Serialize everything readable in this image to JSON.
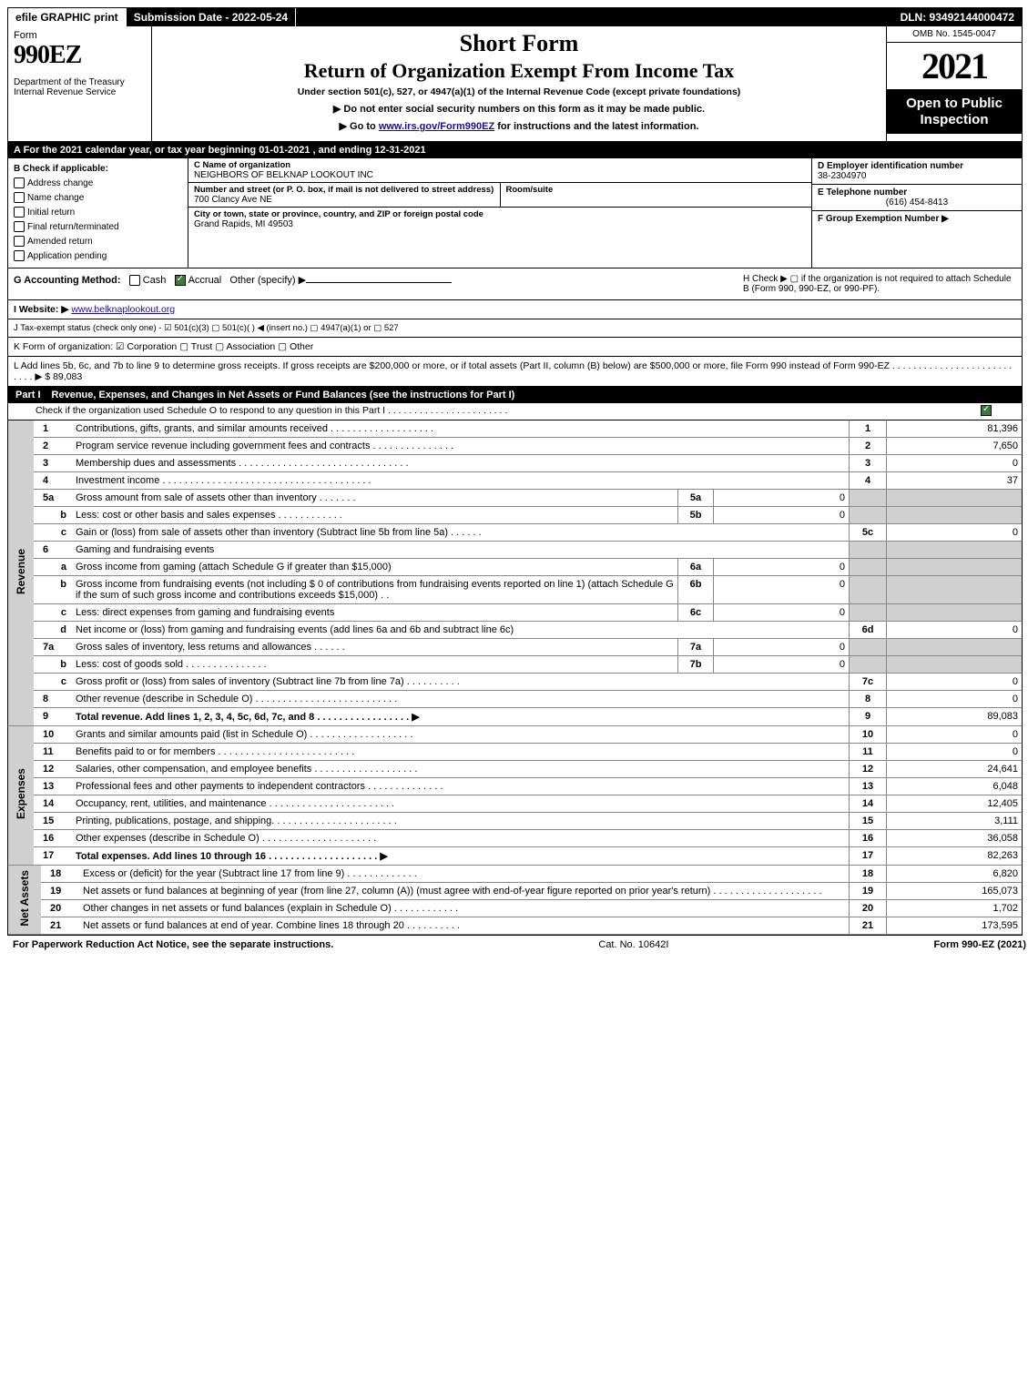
{
  "top_bar": {
    "efile": "efile GRAPHIC print",
    "submission": "Submission Date - 2022-05-24",
    "dln": "DLN: 93492144000472"
  },
  "header": {
    "form_label": "Form",
    "form_num": "990EZ",
    "dept": "Department of the Treasury\nInternal Revenue Service",
    "title1": "Short Form",
    "title2": "Return of Organization Exempt From Income Tax",
    "sub": "Under section 501(c), 527, or 4947(a)(1) of the Internal Revenue Code (except private foundations)",
    "arrow1": "▶ Do not enter social security numbers on this form as it may be made public.",
    "arrow2_pre": "▶ Go to ",
    "arrow2_link": "www.irs.gov/Form990EZ",
    "arrow2_post": " for instructions and the latest information.",
    "omb": "OMB No. 1545-0047",
    "year": "2021",
    "open_public": "Open to Public Inspection"
  },
  "line_a": "A  For the 2021 calendar year, or tax year beginning 01-01-2021 , and ending 12-31-2021",
  "col_b": {
    "title": "B  Check if applicable:",
    "opts": [
      "Address change",
      "Name change",
      "Initial return",
      "Final return/terminated",
      "Amended return",
      "Application pending"
    ]
  },
  "col_c": {
    "name_label": "C Name of organization",
    "name": "NEIGHBORS OF BELKNAP LOOKOUT INC",
    "street_label": "Number and street (or P. O. box, if mail is not delivered to street address)",
    "street": "700 Clancy Ave NE",
    "room_label": "Room/suite",
    "city_label": "City or town, state or province, country, and ZIP or foreign postal code",
    "city": "Grand Rapids, MI  49503"
  },
  "col_de": {
    "d_label": "D Employer identification number",
    "d_val": "38-2304970",
    "e_label": "E Telephone number",
    "e_val": "(616) 454-8413",
    "f_label": "F Group Exemption Number  ▶"
  },
  "line_g": {
    "label": "G Accounting Method:",
    "cash": "Cash",
    "accrual": "Accrual",
    "other": "Other (specify) ▶"
  },
  "line_h": "H  Check ▶   ▢  if the organization is not required to attach Schedule B (Form 990, 990-EZ, or 990-PF).",
  "line_i": {
    "label": "I Website: ▶",
    "url": "www.belknaplookout.org"
  },
  "line_j": "J Tax-exempt status (check only one) -  ☑ 501(c)(3)  ▢ 501(c)(  ) ◀ (insert no.)  ▢ 4947(a)(1) or  ▢ 527",
  "line_k": "K Form of organization:   ☑ Corporation   ▢ Trust   ▢ Association   ▢ Other",
  "line_l": {
    "text": "L Add lines 5b, 6c, and 7b to line 9 to determine gross receipts. If gross receipts are $200,000 or more, or if total assets (Part II, column (B) below) are $500,000 or more, file Form 990 instead of Form 990-EZ  .  .  .  .  .  .  .  .  .  .  .  .  .  .  .  .  .  .  .  .  .  .  .  .  .  .  . ▶ $ ",
    "amount": "89,083"
  },
  "part1": {
    "label": "Part I",
    "title": "Revenue, Expenses, and Changes in Net Assets or Fund Balances (see the instructions for Part I)",
    "sub": "Check if the organization used Schedule O to respond to any question in this Part I  .  .  .  .  .  .  .  .  .  .  .  .  .  .  .  .  .  .  .  .  .  .  ."
  },
  "sections": {
    "revenue": "Revenue",
    "expenses": "Expenses",
    "netassets": "Net Assets"
  },
  "rows": [
    {
      "n": "1",
      "d": "Contributions, gifts, grants, and similar amounts received  .  .  .  .  .  .  .  .  .  .  .  .  .  .  .  .  .  .  .",
      "rn": "1",
      "v": "81,396"
    },
    {
      "n": "2",
      "d": "Program service revenue including government fees and contracts  .  .  .  .  .  .  .  .  .  .  .  .  .  .  .",
      "rn": "2",
      "v": "7,650"
    },
    {
      "n": "3",
      "d": "Membership dues and assessments  .  .  .  .  .  .  .  .  .  .  .  .  .  .  .  .  .  .  .  .  .  .  .  .  .  .  .  .  .  .  .",
      "rn": "3",
      "v": "0"
    },
    {
      "n": "4",
      "d": "Investment income  .  .  .  .  .  .  .  .  .  .  .  .  .  .  .  .  .  .  .  .  .  .  .  .  .  .  .  .  .  .  .  .  .  .  .  .  .  .",
      "rn": "4",
      "v": "37"
    },
    {
      "n": "5a",
      "d": "Gross amount from sale of assets other than inventory  .  .  .  .  .  .  .",
      "sc": "5a",
      "sv": "0"
    },
    {
      "n": "b",
      "sub": true,
      "d": "Less: cost or other basis and sales expenses  .  .  .  .  .  .  .  .  .  .  .  .",
      "sc": "5b",
      "sv": "0"
    },
    {
      "n": "c",
      "sub": true,
      "d": "Gain or (loss) from sale of assets other than inventory (Subtract line 5b from line 5a)  .  .  .  .  .  .",
      "rn": "5c",
      "v": "0"
    },
    {
      "n": "6",
      "d": "Gaming and fundraising events",
      "noval": true
    },
    {
      "n": "a",
      "sub": true,
      "d": "Gross income from gaming (attach Schedule G if greater than $15,000)",
      "sc": "6a",
      "sv": "0"
    },
    {
      "n": "b",
      "sub": true,
      "d": "Gross income from fundraising events (not including $  0                  of contributions from fundraising events reported on line 1) (attach Schedule G if the sum of such gross income and contributions exceeds $15,000)  .  .",
      "sc": "6b",
      "sv": "0"
    },
    {
      "n": "c",
      "sub": true,
      "d": "Less: direct expenses from gaming and fundraising events",
      "sc": "6c",
      "sv": "0"
    },
    {
      "n": "d",
      "sub": true,
      "d": "Net income or (loss) from gaming and fundraising events (add lines 6a and 6b and subtract line 6c)",
      "rn": "6d",
      "v": "0"
    },
    {
      "n": "7a",
      "d": "Gross sales of inventory, less returns and allowances  .  .  .  .  .  .",
      "sc": "7a",
      "sv": "0"
    },
    {
      "n": "b",
      "sub": true,
      "d": "Less: cost of goods sold          .  .  .  .  .  .  .  .  .  .  .  .  .  .  .",
      "sc": "7b",
      "sv": "0"
    },
    {
      "n": "c",
      "sub": true,
      "d": "Gross profit or (loss) from sales of inventory (Subtract line 7b from line 7a)  .  .  .  .  .  .  .  .  .  .",
      "rn": "7c",
      "v": "0"
    },
    {
      "n": "8",
      "d": "Other revenue (describe in Schedule O)  .  .  .  .  .  .  .  .  .  .  .  .  .  .  .  .  .  .  .  .  .  .  .  .  .  .",
      "rn": "8",
      "v": "0"
    },
    {
      "n": "9",
      "d": "Total revenue. Add lines 1, 2, 3, 4, 5c, 6d, 7c, and 8  .  .  .  .  .  .  .  .  .  .  .  .  .  .  .  .  .  ▶",
      "rn": "9",
      "v": "89,083",
      "bold": true
    }
  ],
  "expense_rows": [
    {
      "n": "10",
      "d": "Grants and similar amounts paid (list in Schedule O)  .  .  .  .  .  .  .  .  .  .  .  .  .  .  .  .  .  .  .",
      "rn": "10",
      "v": "0"
    },
    {
      "n": "11",
      "d": "Benefits paid to or for members         .  .  .  .  .  .  .  .  .  .  .  .  .  .  .  .  .  .  .  .  .  .  .  .  .",
      "rn": "11",
      "v": "0"
    },
    {
      "n": "12",
      "d": "Salaries, other compensation, and employee benefits  .  .  .  .  .  .  .  .  .  .  .  .  .  .  .  .  .  .  .",
      "rn": "12",
      "v": "24,641"
    },
    {
      "n": "13",
      "d": "Professional fees and other payments to independent contractors  .  .  .  .  .  .  .  .  .  .  .  .  .  .",
      "rn": "13",
      "v": "6,048"
    },
    {
      "n": "14",
      "d": "Occupancy, rent, utilities, and maintenance .  .  .  .  .  .  .  .  .  .  .  .  .  .  .  .  .  .  .  .  .  .  .",
      "rn": "14",
      "v": "12,405"
    },
    {
      "n": "15",
      "d": "Printing, publications, postage, and shipping.  .  .  .  .  .  .  .  .  .  .  .  .  .  .  .  .  .  .  .  .  .  .",
      "rn": "15",
      "v": "3,111"
    },
    {
      "n": "16",
      "d": "Other expenses (describe in Schedule O)       .  .  .  .  .  .  .  .  .  .  .  .  .  .  .  .  .  .  .  .  .",
      "rn": "16",
      "v": "36,058"
    },
    {
      "n": "17",
      "d": "Total expenses. Add lines 10 through 16     .  .  .  .  .  .  .  .  .  .  .  .  .  .  .  .  .  .  .  .  ▶",
      "rn": "17",
      "v": "82,263",
      "bold": true
    }
  ],
  "netasset_rows": [
    {
      "n": "18",
      "d": "Excess or (deficit) for the year (Subtract line 17 from line 9)        .  .  .  .  .  .  .  .  .  .  .  .  .",
      "rn": "18",
      "v": "6,820"
    },
    {
      "n": "19",
      "d": "Net assets or fund balances at beginning of year (from line 27, column (A)) (must agree with end-of-year figure reported on prior year's return) .  .  .  .  .  .  .  .  .  .  .  .  .  .  .  .  .  .  .  .",
      "rn": "19",
      "v": "165,073"
    },
    {
      "n": "20",
      "d": "Other changes in net assets or fund balances (explain in Schedule O)  .  .  .  .  .  .  .  .  .  .  .  .",
      "rn": "20",
      "v": "1,702"
    },
    {
      "n": "21",
      "d": "Net assets or fund balances at end of year. Combine lines 18 through 20  .  .  .  .  .  .  .  .  .  .",
      "rn": "21",
      "v": "173,595"
    }
  ],
  "footer": {
    "left": "For Paperwork Reduction Act Notice, see the separate instructions.",
    "mid": "Cat. No. 10642I",
    "right": "Form 990-EZ (2021)"
  }
}
